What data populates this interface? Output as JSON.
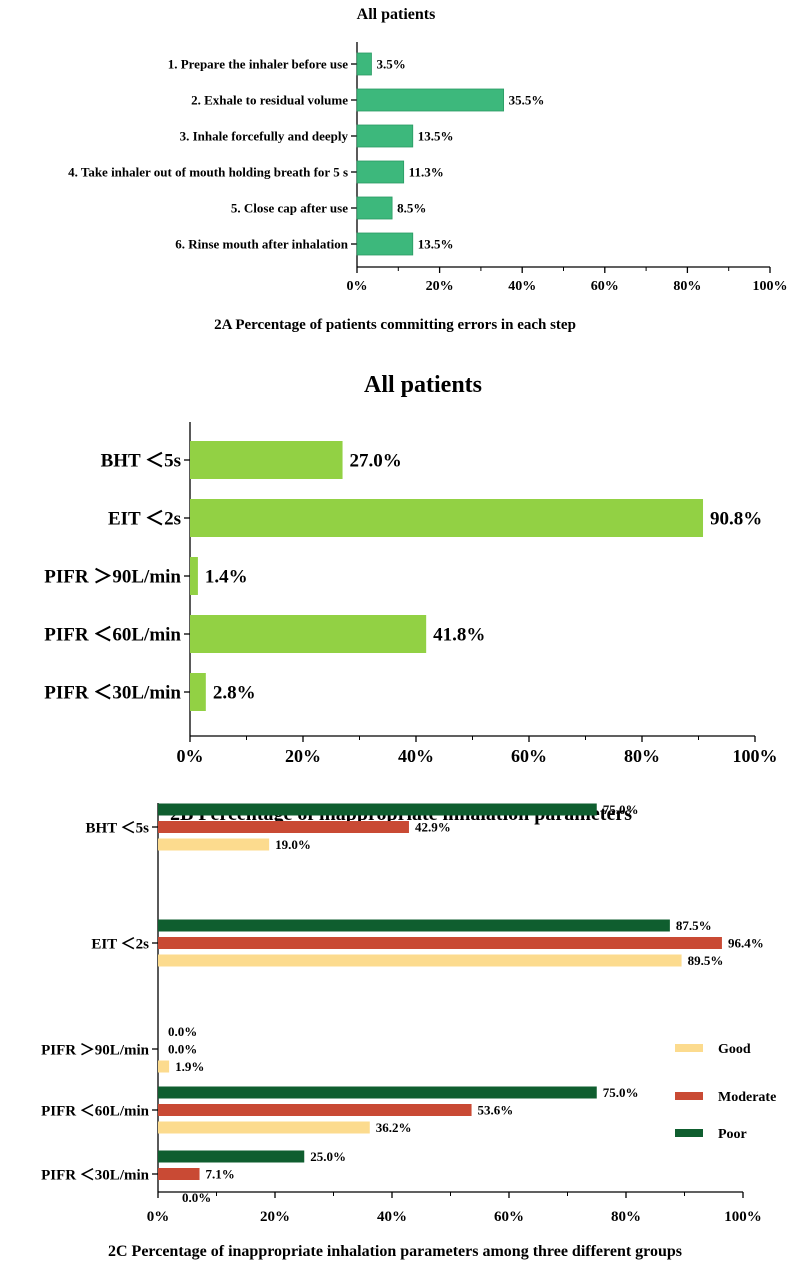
{
  "chart_data": [
    {
      "type": "bar",
      "orientation": "horizontal",
      "title": "All patients",
      "caption": "2A Percentage of patients committing errors in each step",
      "categories": [
        "1. Prepare the inhaler before use",
        "2. Exhale to residual volume",
        "3. Inhale forcefully and deeply",
        "4. Take inhaler out of mouth holding breath for 5 s",
        "5. Close cap after use",
        "6. Rinse mouth after inhalation"
      ],
      "values": [
        3.5,
        35.5,
        13.5,
        11.3,
        8.5,
        13.5
      ],
      "value_labels": [
        "3.5%",
        "35.5%",
        "13.5%",
        "11.3%",
        "8.5%",
        "13.5%"
      ],
      "bar_color": "#3db87c",
      "xlim": [
        0,
        100
      ],
      "x_ticks": [
        "0%",
        "20%",
        "40%",
        "60%",
        "80%",
        "100%"
      ],
      "grid": false
    },
    {
      "type": "bar",
      "orientation": "horizontal",
      "title": "All patients",
      "caption": "2B Percentage of inappropriate inhalation parameters",
      "categories": [
        "BHT ＜5s",
        "EIT ＜2s",
        "PIFR ＞90L/min",
        "PIFR ＜60L/min",
        "PIFR ＜30L/min"
      ],
      "values": [
        27.0,
        90.8,
        1.4,
        41.8,
        2.8
      ],
      "value_labels": [
        "27.0%",
        "90.8%",
        "1.4%",
        "41.8%",
        "2.8%"
      ],
      "bar_color": "#92d144",
      "xlim": [
        0,
        100
      ],
      "x_ticks": [
        "0%",
        "20%",
        "40%",
        "60%",
        "80%",
        "100%"
      ],
      "grid": false
    },
    {
      "type": "bar",
      "orientation": "horizontal",
      "title": "",
      "caption": "2C Percentage of inappropriate inhalation parameters among three different groups",
      "categories": [
        "BHT ＜5s",
        "EIT ＜2s",
        "PIFR ＞90L/min",
        "PIFR ＜60L/min",
        "PIFR ＜30L/min"
      ],
      "series": [
        {
          "name": "Poor",
          "color": "#0f5e2f",
          "values": [
            75.0,
            87.5,
            0.0,
            75.0,
            25.0
          ],
          "labels": [
            "75.0%",
            "87.5%",
            "0.0%",
            "75.0%",
            "25.0%"
          ]
        },
        {
          "name": "Moderate",
          "color": "#c94a34",
          "values": [
            42.9,
            96.4,
            0.0,
            53.6,
            7.1
          ],
          "labels": [
            "42.9%",
            "96.4%",
            "0.0%",
            "53.6%",
            "7.1%"
          ]
        },
        {
          "name": "Good",
          "color": "#fcdb8e",
          "values": [
            19.0,
            89.5,
            1.9,
            36.2,
            0.0
          ],
          "labels": [
            "19.0%",
            "89.5%",
            "1.9%",
            "36.2%",
            "0.0%"
          ]
        }
      ],
      "legend_order": [
        "Good",
        "Moderate",
        "Poor"
      ],
      "legend_position": "right",
      "xlim": [
        0,
        100
      ],
      "x_ticks": [
        "0%",
        "20%",
        "40%",
        "60%",
        "80%",
        "100%"
      ],
      "grid": false
    }
  ]
}
